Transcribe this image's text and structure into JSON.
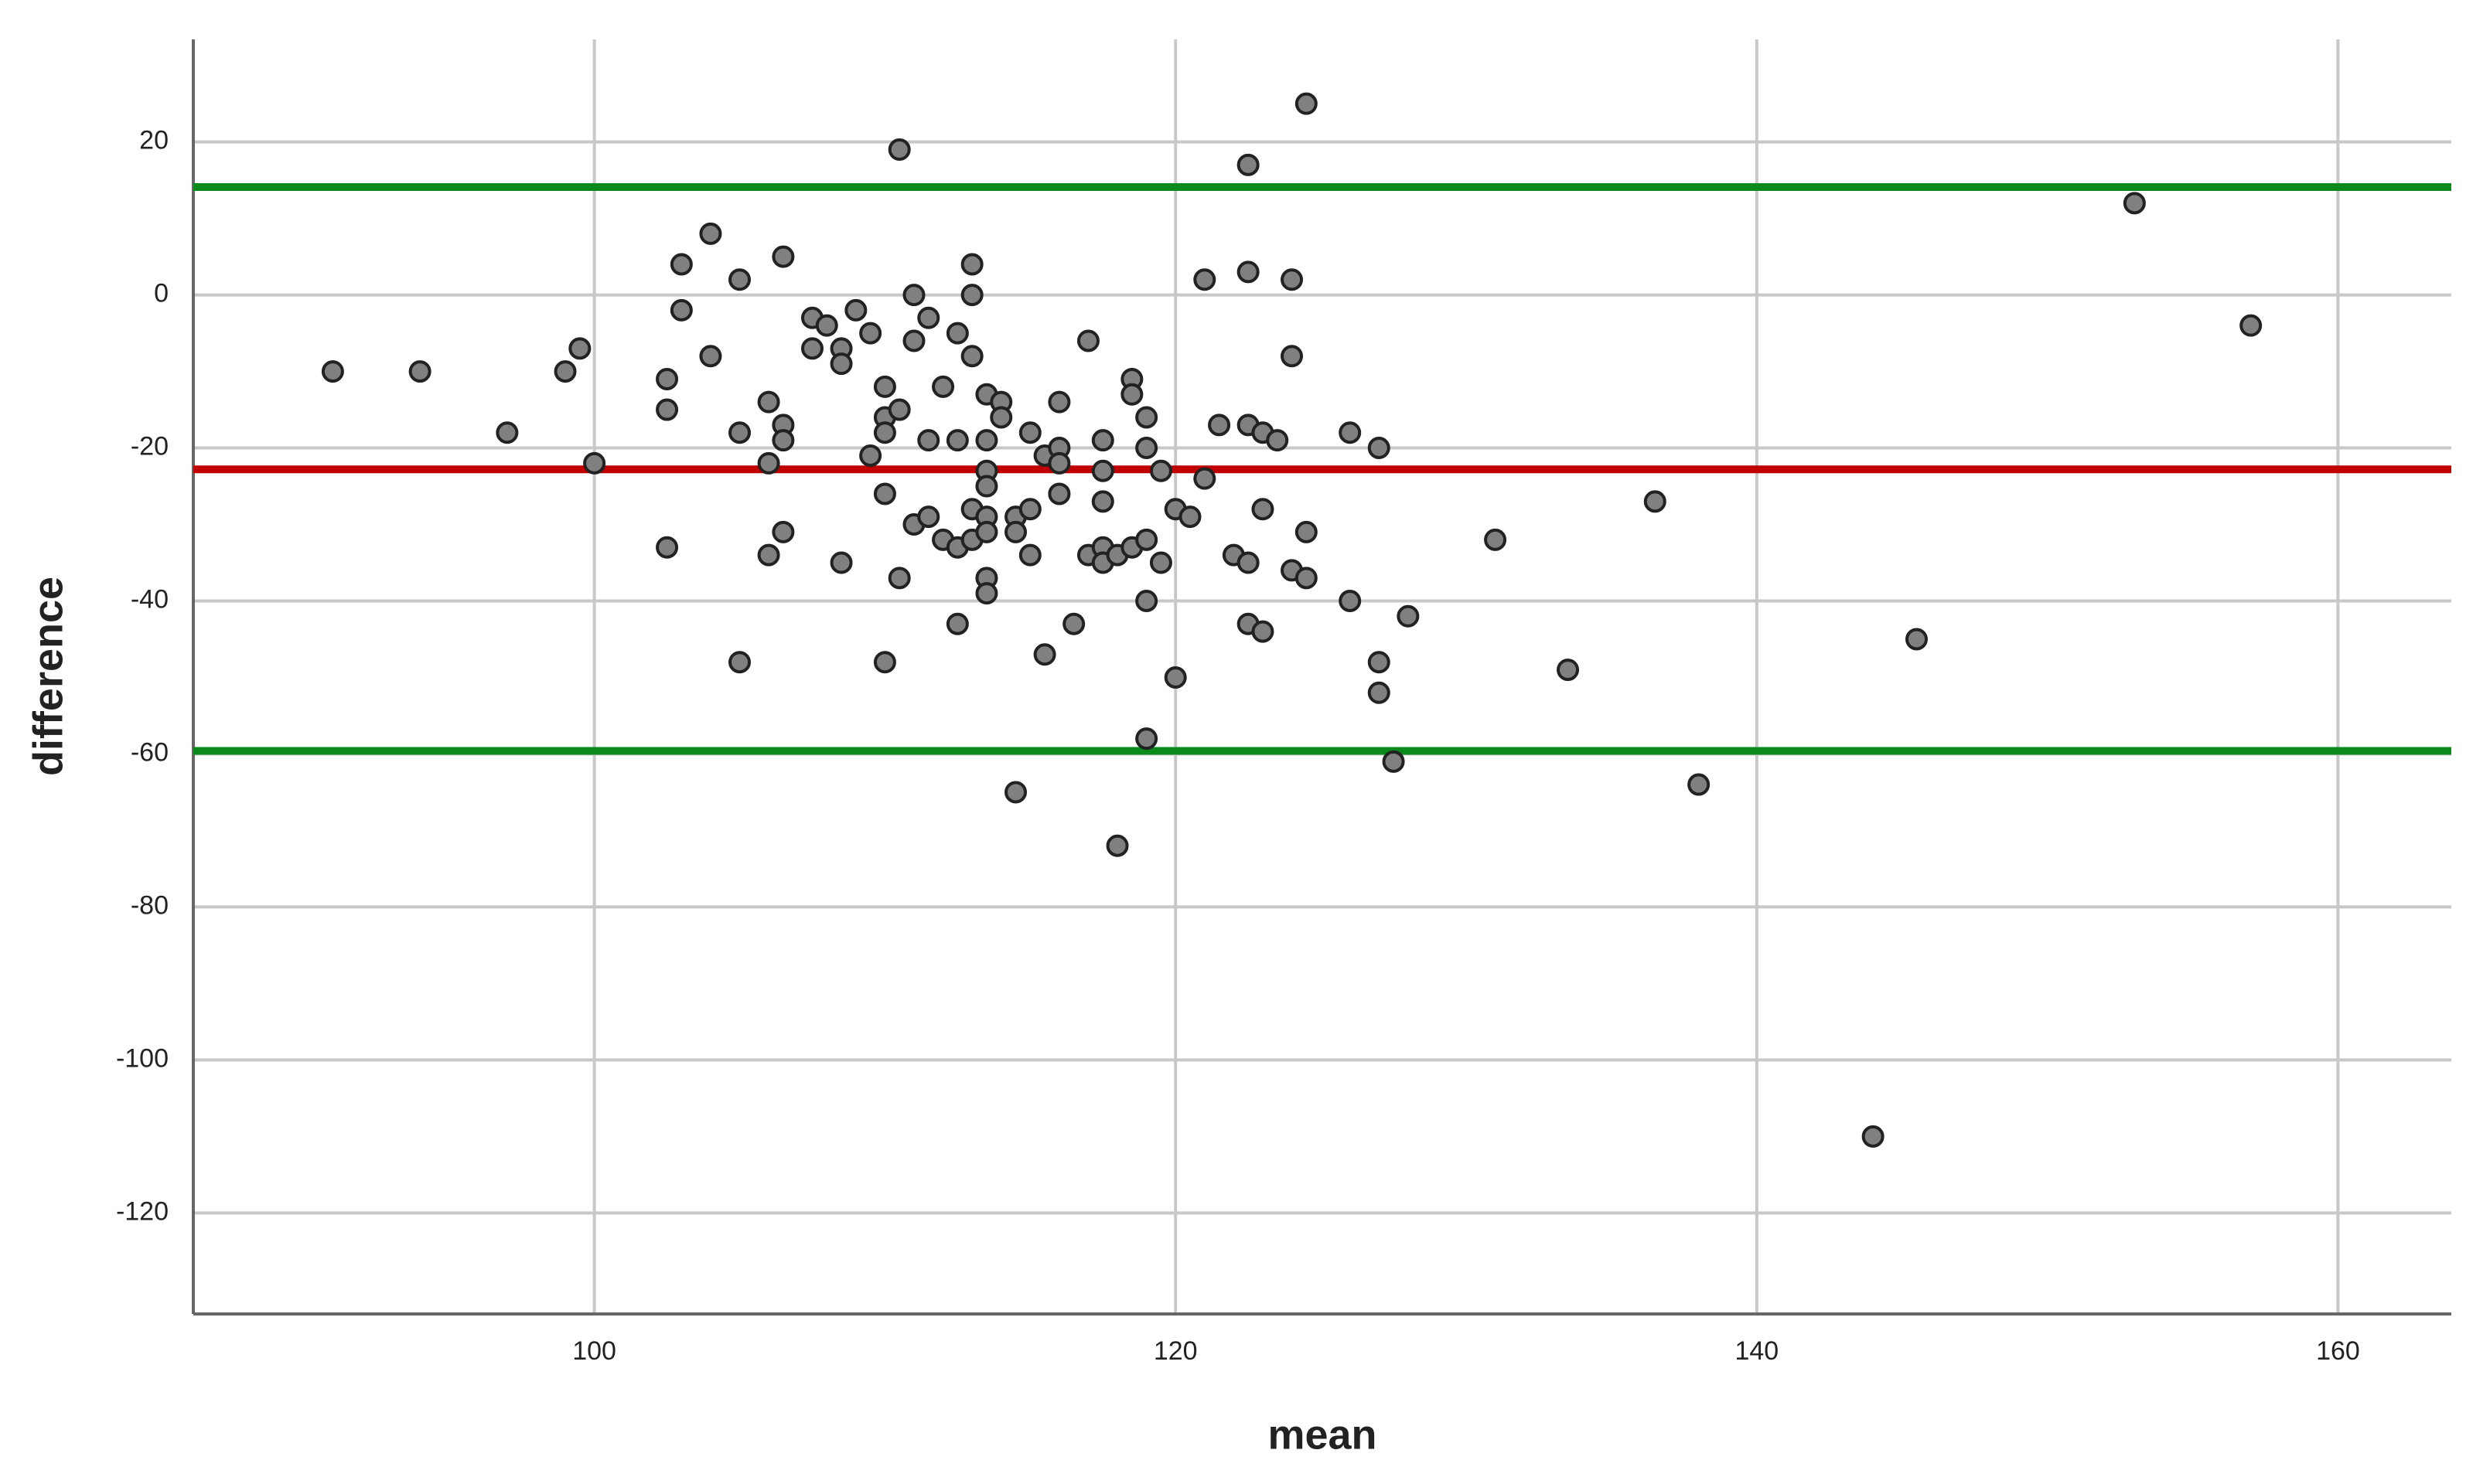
{
  "chart_data": {
    "type": "scatter",
    "xlabel": "mean",
    "ylabel": "difference",
    "x": [
      91,
      94,
      97,
      99,
      99.5,
      100,
      102.5,
      102.5,
      102.5,
      103,
      103,
      104,
      104,
      105,
      105,
      105,
      106,
      106,
      106,
      106.5,
      106.5,
      106.5,
      106.5,
      107.5,
      107.5,
      108,
      108.5,
      108.5,
      108.5,
      109,
      109.5,
      109.5,
      110,
      110,
      110,
      110,
      110,
      110.5,
      110.5,
      110.5,
      111,
      111,
      111,
      111.5,
      111.5,
      111.5,
      112,
      112,
      112.5,
      112.5,
      112.5,
      112.5,
      113,
      113,
      113,
      113,
      113,
      113.5,
      113.5,
      113.5,
      113.5,
      113.5,
      113.5,
      113.5,
      113.5,
      114,
      114,
      114.5,
      114.5,
      114.5,
      115,
      115,
      115,
      115.5,
      115.5,
      116,
      116,
      116,
      116,
      116.5,
      117,
      117,
      117.5,
      117.5,
      117.5,
      117.5,
      117.5,
      118,
      118,
      118.5,
      118.5,
      118.5,
      119,
      119,
      119,
      119,
      119,
      119.5,
      119.5,
      120,
      120,
      120.5,
      121,
      121,
      121.5,
      122,
      122.5,
      122.5,
      122.5,
      122.5,
      122.5,
      123,
      123,
      123,
      123.5,
      124,
      124,
      124,
      124.5,
      124.5,
      124.5,
      126,
      126,
      127,
      127,
      127,
      127.5,
      128,
      131,
      133.5,
      136.5,
      138,
      144,
      145.5,
      153,
      157
    ],
    "values": [
      -10,
      -10,
      -18,
      -10,
      -7,
      -22,
      -11,
      -15,
      -33,
      4,
      -2,
      8,
      -8,
      2,
      -18,
      -48,
      -14,
      -22,
      -34,
      5,
      -17,
      -19,
      -31,
      -3,
      -7,
      -4,
      -7,
      -9,
      -35,
      -2,
      -5,
      -21,
      -12,
      -16,
      -18,
      -26,
      -48,
      19,
      -15,
      -37,
      0,
      -6,
      -30,
      -3,
      -19,
      -29,
      -12,
      -32,
      -5,
      -19,
      -33,
      -43,
      4,
      0,
      -8,
      -28,
      -32,
      -13,
      -19,
      -23,
      -25,
      -29,
      -31,
      -37,
      -39,
      -14,
      -16,
      -29,
      -31,
      -65,
      -18,
      -28,
      -34,
      -21,
      -47,
      -14,
      -20,
      -22,
      -26,
      -43,
      -6,
      -34,
      -19,
      -23,
      -27,
      -33,
      -35,
      -34,
      -72,
      -11,
      -13,
      -33,
      -16,
      -20,
      -32,
      -40,
      -58,
      -23,
      -35,
      -28,
      -50,
      -29,
      2,
      -24,
      -17,
      -34,
      17,
      3,
      -17,
      -35,
      -43,
      -18,
      -28,
      -44,
      -19,
      2,
      -8,
      -36,
      25,
      -31,
      -37,
      -18,
      -40,
      -20,
      -48,
      -52,
      -61,
      -42,
      -32,
      -49,
      -27,
      -64,
      -110,
      -45,
      12,
      -4
    ],
    "color": "#808080",
    "reference_lines": [
      {
        "y": 14.1,
        "color": "#0a8a1a"
      },
      {
        "y": -22.8,
        "color": "#c00000"
      },
      {
        "y": -59.6,
        "color": "#0a8a1a"
      }
    ],
    "xlim": [
      86.2,
      163.9
    ],
    "ylim": [
      -133.2,
      33.4
    ],
    "xticks": [
      100,
      120,
      140,
      160
    ],
    "yticks": [
      20,
      0,
      -20,
      -40,
      -60,
      -80,
      -100,
      -120
    ],
    "grid": true
  }
}
